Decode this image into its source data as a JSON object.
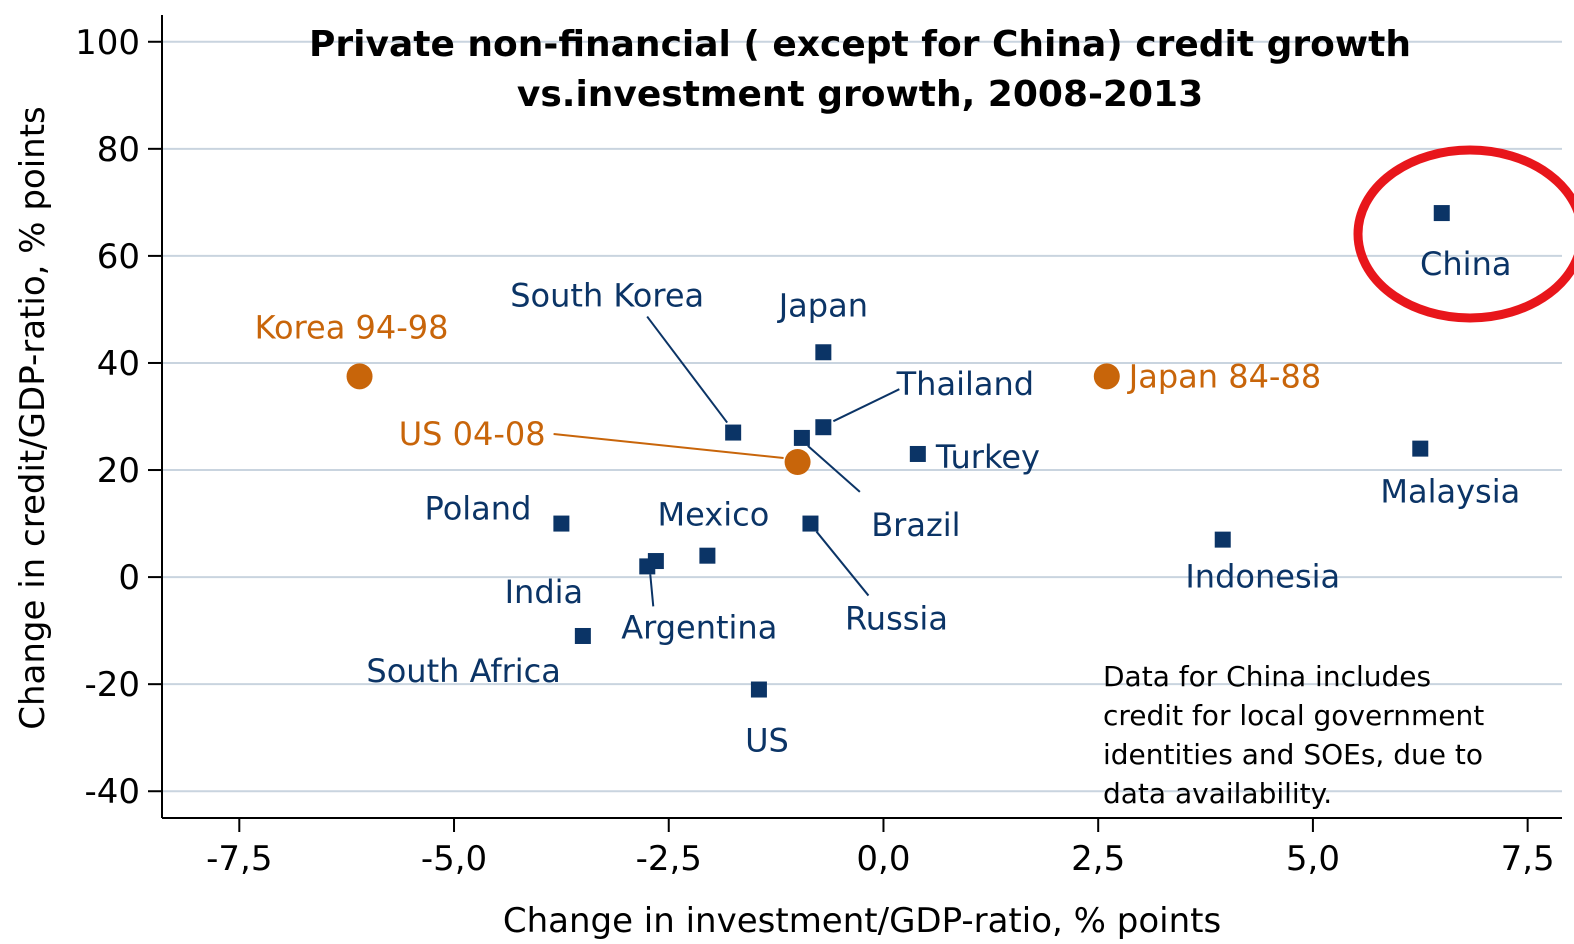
{
  "chart_data": {
    "type": "scatter",
    "title_lines": [
      "Private non-financial ( except for China) credit growth",
      "vs.investment growth, 2008-2013"
    ],
    "xlabel": "Change in investment/GDP-ratio, % points",
    "ylabel": "Change in credit/GDP-ratio, % points",
    "xlim": [
      -8.4,
      7.9
    ],
    "ylim": [
      -45,
      105
    ],
    "xticks": [
      -7.5,
      -5.0,
      -2.5,
      0.0,
      2.5,
      5.0,
      7.5
    ],
    "xtick_labels": [
      "-7,5",
      "-5,0",
      "-2,5",
      "0,0",
      "2,5",
      "5,0",
      "7,5"
    ],
    "yticks": [
      -40,
      -20,
      0,
      20,
      40,
      60,
      80,
      100
    ],
    "ytick_labels": [
      "-40",
      "-20",
      "0",
      "20",
      "40",
      "60",
      "80",
      "100"
    ],
    "grid": "horizontal",
    "colors": {
      "country": "#0b3466",
      "historical": "#c8650a",
      "highlight": "#e8161b",
      "grid": "#c9d4df"
    },
    "series": [
      {
        "marker": "square",
        "points": [
          {
            "label": "China",
            "x": 6.5,
            "y": 68
          },
          {
            "label": "Japan",
            "x": -0.7,
            "y": 42
          },
          {
            "label": "South Korea",
            "x": -1.75,
            "y": 27
          },
          {
            "label": "Thailand",
            "x": -0.7,
            "y": 28
          },
          {
            "label": "Brazil",
            "x": -0.95,
            "y": 26
          },
          {
            "label": "Turkey",
            "x": 0.4,
            "y": 23
          },
          {
            "label": "Malaysia",
            "x": 6.25,
            "y": 24
          },
          {
            "label": "Poland",
            "x": -3.75,
            "y": 10
          },
          {
            "label": "Mexico",
            "x": -2.05,
            "y": 4
          },
          {
            "label": "Russia",
            "x": -0.85,
            "y": 10
          },
          {
            "label": "Indonesia",
            "x": 3.95,
            "y": 7
          },
          {
            "label": "India",
            "x": -2.65,
            "y": 3
          },
          {
            "label": "Argentina",
            "x": -2.75,
            "y": 2
          },
          {
            "label": "South Africa",
            "x": -3.5,
            "y": -11
          },
          {
            "label": "US",
            "x": -1.45,
            "y": -21
          }
        ]
      },
      {
        "marker": "circle",
        "points": [
          {
            "label": "Korea 94-98",
            "x": -6.1,
            "y": 37.5
          },
          {
            "label": "Japan 84-88",
            "x": 2.6,
            "y": 37.5
          },
          {
            "label": "US 04-08",
            "x": -1.0,
            "y": 21.5
          }
        ]
      }
    ],
    "annotation_lines": [
      "Data for China includes",
      "credit for local government",
      "identities and SOEs, due to",
      "data availability."
    ]
  }
}
